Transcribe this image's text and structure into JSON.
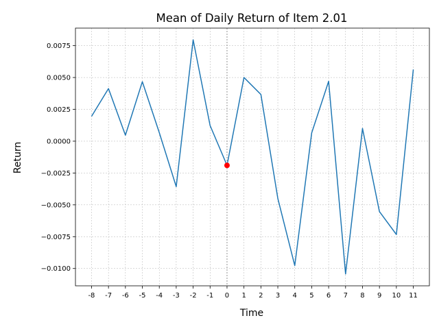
{
  "chart_data": {
    "type": "line",
    "title": "Mean of Daily Return of Item 2.01",
    "xlabel": "Time",
    "ylabel": "Return",
    "x": [
      -8,
      -7,
      -6,
      -5,
      -4,
      -3,
      -2,
      -1,
      0,
      1,
      2,
      3,
      4,
      5,
      6,
      7,
      8,
      9,
      10,
      11
    ],
    "x_tick_labels": [
      "-8",
      "-7",
      "-6",
      "-5",
      "-4",
      "-3",
      "-2",
      "-1",
      "0",
      "1",
      "2",
      "3",
      "4",
      "5",
      "6",
      "7",
      "8",
      "9",
      "10",
      "11"
    ],
    "series": [
      {
        "values": [
          0.00195,
          0.00413,
          0.00047,
          0.00467,
          0.00067,
          -0.00357,
          0.00796,
          0.00123,
          -0.0019,
          0.005,
          0.00367,
          -0.0045,
          -0.00977,
          0.00065,
          0.0047,
          -0.01043,
          0.001,
          -0.00553,
          -0.00733,
          0.00563
        ],
        "color": "#1f77b4"
      }
    ],
    "highlight_point": {
      "x": 0,
      "y": -0.0019,
      "color": "#ff0000"
    },
    "y_ticks": [
      -0.01,
      -0.0075,
      -0.005,
      -0.0025,
      0.0,
      0.0025,
      0.005,
      0.0075
    ],
    "y_tick_labels": [
      "−0.0100",
      "−0.0075",
      "−0.0050",
      "−0.0025",
      "0.0000",
      "0.0025",
      "0.0050",
      "0.0075"
    ],
    "xlim": [
      -8.95,
      11.95
    ],
    "ylim": [
      -0.01136,
      0.00888
    ],
    "grid": true,
    "vertical_line_x": 0
  }
}
